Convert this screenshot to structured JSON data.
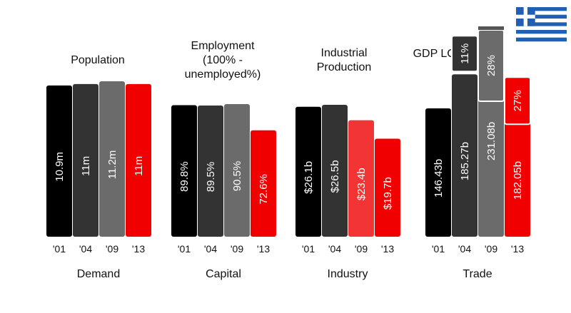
{
  "flag": {
    "name": "greece-flag-icon",
    "colors": {
      "blue": "#1f5fb4",
      "white": "#ffffff"
    }
  },
  "colors": {
    "c01": "#000000",
    "c04": "#333333",
    "c09": "#6b6b6b",
    "c13": "#f10000",
    "c09_industry": "#f23434"
  },
  "chart_data": [
    {
      "type": "bar",
      "title": "Population",
      "xlabel": "Demand",
      "categories": [
        "'01",
        "'04",
        "'09",
        "'13"
      ],
      "values": [
        10.9,
        11,
        11.2,
        11
      ],
      "value_labels": [
        "10.9m",
        "11m",
        "11.2m",
        "11m"
      ],
      "ylim": [
        0,
        11.2
      ],
      "grid": false
    },
    {
      "type": "bar",
      "title": "Employment\n(100% -\nunemployed%)",
      "xlabel": "Capital",
      "categories": [
        "'01",
        "'04",
        "'09",
        "'13"
      ],
      "values": [
        89.8,
        89.5,
        90.5,
        72.6
      ],
      "value_labels": [
        "89.8%",
        "89.5%",
        "90.5%",
        "72.6%"
      ],
      "ylim": [
        0,
        90.5
      ],
      "grid": false
    },
    {
      "type": "bar",
      "title": "Industrial\nProduction",
      "xlabel": "Industry",
      "categories": [
        "'01",
        "'04",
        "'09",
        "'13"
      ],
      "values": [
        26.1,
        26.5,
        23.4,
        19.7
      ],
      "value_labels": [
        "$26.1b",
        "$26.5b",
        "$23.4b",
        "$19.7b"
      ],
      "ylim": [
        0,
        26.5
      ],
      "grid": false
    },
    {
      "type": "bar",
      "title": "GDP LCU",
      "xlabel": "Trade",
      "categories": [
        "'01",
        "'04",
        "'09",
        "'13"
      ],
      "values": [
        146.43,
        185.27,
        231.08,
        182.05
      ],
      "value_labels": [
        "146.43b",
        "185.27b",
        "231.08b",
        "182.05b"
      ],
      "growth_labels": [
        "",
        "11%",
        "28%",
        "27%"
      ],
      "ylim": [
        0,
        231.08
      ],
      "grid": false
    }
  ]
}
